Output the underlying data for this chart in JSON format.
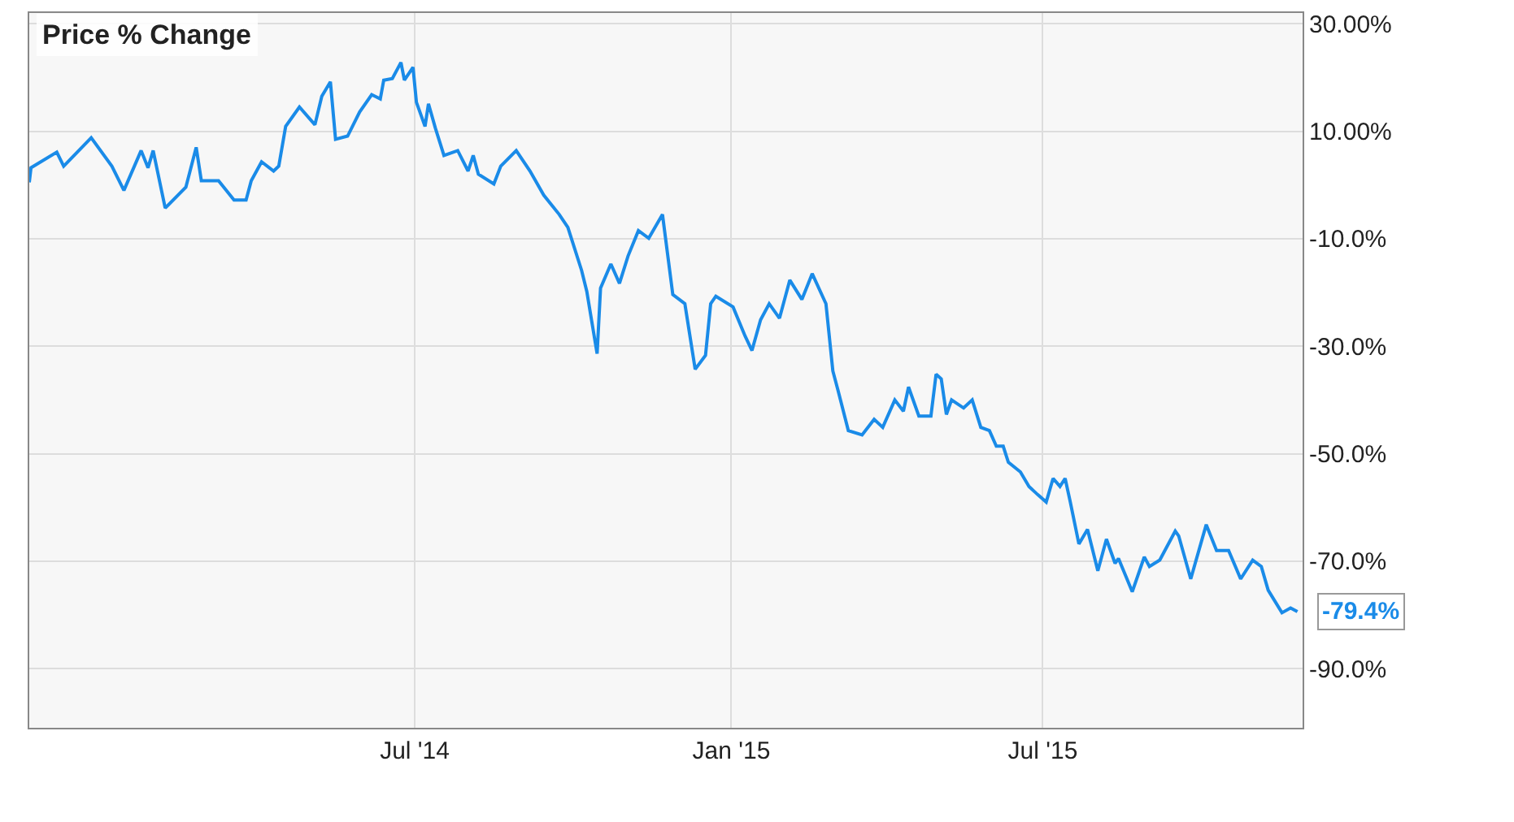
{
  "chart_data": {
    "type": "line",
    "title": "Price % Change",
    "x": [
      "2013-11-19",
      "2013-11-20",
      "2013-12-05",
      "2013-12-09",
      "2013-12-25",
      "2014-01-06",
      "2014-01-13",
      "2014-01-23",
      "2014-01-27",
      "2014-01-30",
      "2014-02-06",
      "2014-02-18",
      "2014-02-24",
      "2014-02-27",
      "2014-03-09",
      "2014-03-18",
      "2014-03-25",
      "2014-03-28",
      "2014-04-03",
      "2014-04-10",
      "2014-04-13",
      "2014-04-17",
      "2014-04-25",
      "2014-05-04",
      "2014-05-08",
      "2014-05-13",
      "2014-05-16",
      "2014-05-23",
      "2014-05-30",
      "2014-06-06",
      "2014-06-11",
      "2014-06-13",
      "2014-06-18",
      "2014-06-23",
      "2014-06-25",
      "2014-06-30",
      "2014-07-02",
      "2014-07-07",
      "2014-07-09",
      "2014-07-13",
      "2014-07-18",
      "2014-07-26",
      "2014-08-01",
      "2014-08-04",
      "2014-08-07",
      "2014-08-16",
      "2014-08-20",
      "2014-08-29",
      "2014-09-06",
      "2014-09-14",
      "2014-09-23",
      "2014-09-28",
      "2014-10-06",
      "2014-10-09",
      "2014-10-15",
      "2014-10-17",
      "2014-10-23",
      "2014-10-28",
      "2014-11-02",
      "2014-11-08",
      "2014-11-14",
      "2014-11-22",
      "2014-11-28",
      "2014-12-05",
      "2014-12-11",
      "2014-12-17",
      "2014-12-20",
      "2014-12-23",
      "2015-01-02",
      "2015-01-09",
      "2015-01-13",
      "2015-01-18",
      "2015-01-23",
      "2015-01-29",
      "2015-02-04",
      "2015-02-11",
      "2015-02-17",
      "2015-02-25",
      "2015-03-01",
      "2015-03-04",
      "2015-03-10",
      "2015-03-18",
      "2015-03-25",
      "2015-03-30",
      "2015-04-06",
      "2015-04-11",
      "2015-04-14",
      "2015-04-20",
      "2015-04-27",
      "2015-04-30",
      "2015-05-03",
      "2015-05-06",
      "2015-05-09",
      "2015-05-16",
      "2015-05-21",
      "2015-05-26",
      "2015-05-31",
      "2015-06-04",
      "2015-06-08",
      "2015-06-11",
      "2015-06-18",
      "2015-06-23",
      "2015-06-28",
      "2015-07-03",
      "2015-07-07",
      "2015-07-11",
      "2015-07-14",
      "2015-07-17",
      "2015-07-22",
      "2015-07-27",
      "2015-08-02",
      "2015-08-07",
      "2015-08-12",
      "2015-08-14",
      "2015-08-22",
      "2015-08-29",
      "2015-09-01",
      "2015-09-07",
      "2015-09-16",
      "2015-09-18",
      "2015-09-25",
      "2015-10-04",
      "2015-10-10",
      "2015-10-17",
      "2015-10-24",
      "2015-10-31",
      "2015-11-05",
      "2015-11-09",
      "2015-11-17",
      "2015-11-22",
      "2015-11-26"
    ],
    "series": [
      {
        "color": "#1a8be8",
        "values": [
          0.5,
          3.2,
          6.1,
          3.5,
          8.8,
          3.5,
          -1.0,
          6.4,
          3.2,
          6.4,
          -4.3,
          -0.4,
          7.0,
          0.8,
          0.8,
          -2.8,
          -2.8,
          0.8,
          4.3,
          2.6,
          3.5,
          10.9,
          14.5,
          11.2,
          16.5,
          19.2,
          8.5,
          9.1,
          13.6,
          16.8,
          16.0,
          19.5,
          19.8,
          22.8,
          19.5,
          21.9,
          15.4,
          10.9,
          15.1,
          10.6,
          5.5,
          6.4,
          2.6,
          5.5,
          2.0,
          0.2,
          3.5,
          6.4,
          2.6,
          -1.9,
          -5.5,
          -7.9,
          -15.9,
          -19.8,
          -31.4,
          -19.2,
          -14.7,
          -18.3,
          -13.2,
          -8.5,
          -9.9,
          -5.5,
          -20.4,
          -22.1,
          -34.3,
          -31.7,
          -22.1,
          -20.7,
          -22.7,
          -28.1,
          -30.8,
          -25.1,
          -22.1,
          -24.8,
          -17.7,
          -21.3,
          -16.5,
          -22.1,
          -34.6,
          -38.2,
          -45.7,
          -46.5,
          -43.6,
          -45.1,
          -40.0,
          -42.1,
          -37.6,
          -43.0,
          -43.0,
          -35.2,
          -36.1,
          -42.7,
          -40.0,
          -41.5,
          -40.0,
          -45.1,
          -45.7,
          -48.6,
          -48.6,
          -51.6,
          -53.4,
          -56.1,
          -57.6,
          -59.0,
          -54.6,
          -56.1,
          -54.6,
          -59.0,
          -66.8,
          -64.1,
          -71.8,
          -65.9,
          -70.4,
          -69.5,
          -75.7,
          -69.2,
          -71.0,
          -69.8,
          -64.4,
          -65.3,
          -73.3,
          -63.2,
          -68.0,
          -68.0,
          -73.3,
          -69.8,
          -71.0,
          -75.4,
          -79.6,
          -78.7,
          -79.4
        ]
      }
    ],
    "annotations": [
      {
        "text": "-79.4%",
        "x": "2015-11-26",
        "y": -79.4
      }
    ],
    "xlim": [
      "2013-11-19",
      "2015-11-29"
    ],
    "xticks": [
      {
        "value": "2014-07-01",
        "label": "Jul '14"
      },
      {
        "value": "2015-01-01",
        "label": "Jan '15"
      },
      {
        "value": "2015-07-01",
        "label": "Jul '15"
      }
    ],
    "ylim": [
      -101,
      32
    ],
    "yticks": [
      {
        "value": 30,
        "label": "30.00%"
      },
      {
        "value": 10,
        "label": "10.00%"
      },
      {
        "value": -10,
        "label": "-10.0%"
      },
      {
        "value": -30,
        "label": "-30.0%"
      },
      {
        "value": -50,
        "label": "-50.0%"
      },
      {
        "value": -70,
        "label": "-70.0%"
      },
      {
        "value": -90,
        "label": "-90.0%"
      }
    ],
    "grid": true,
    "line_style": "solid",
    "marker": "none"
  }
}
